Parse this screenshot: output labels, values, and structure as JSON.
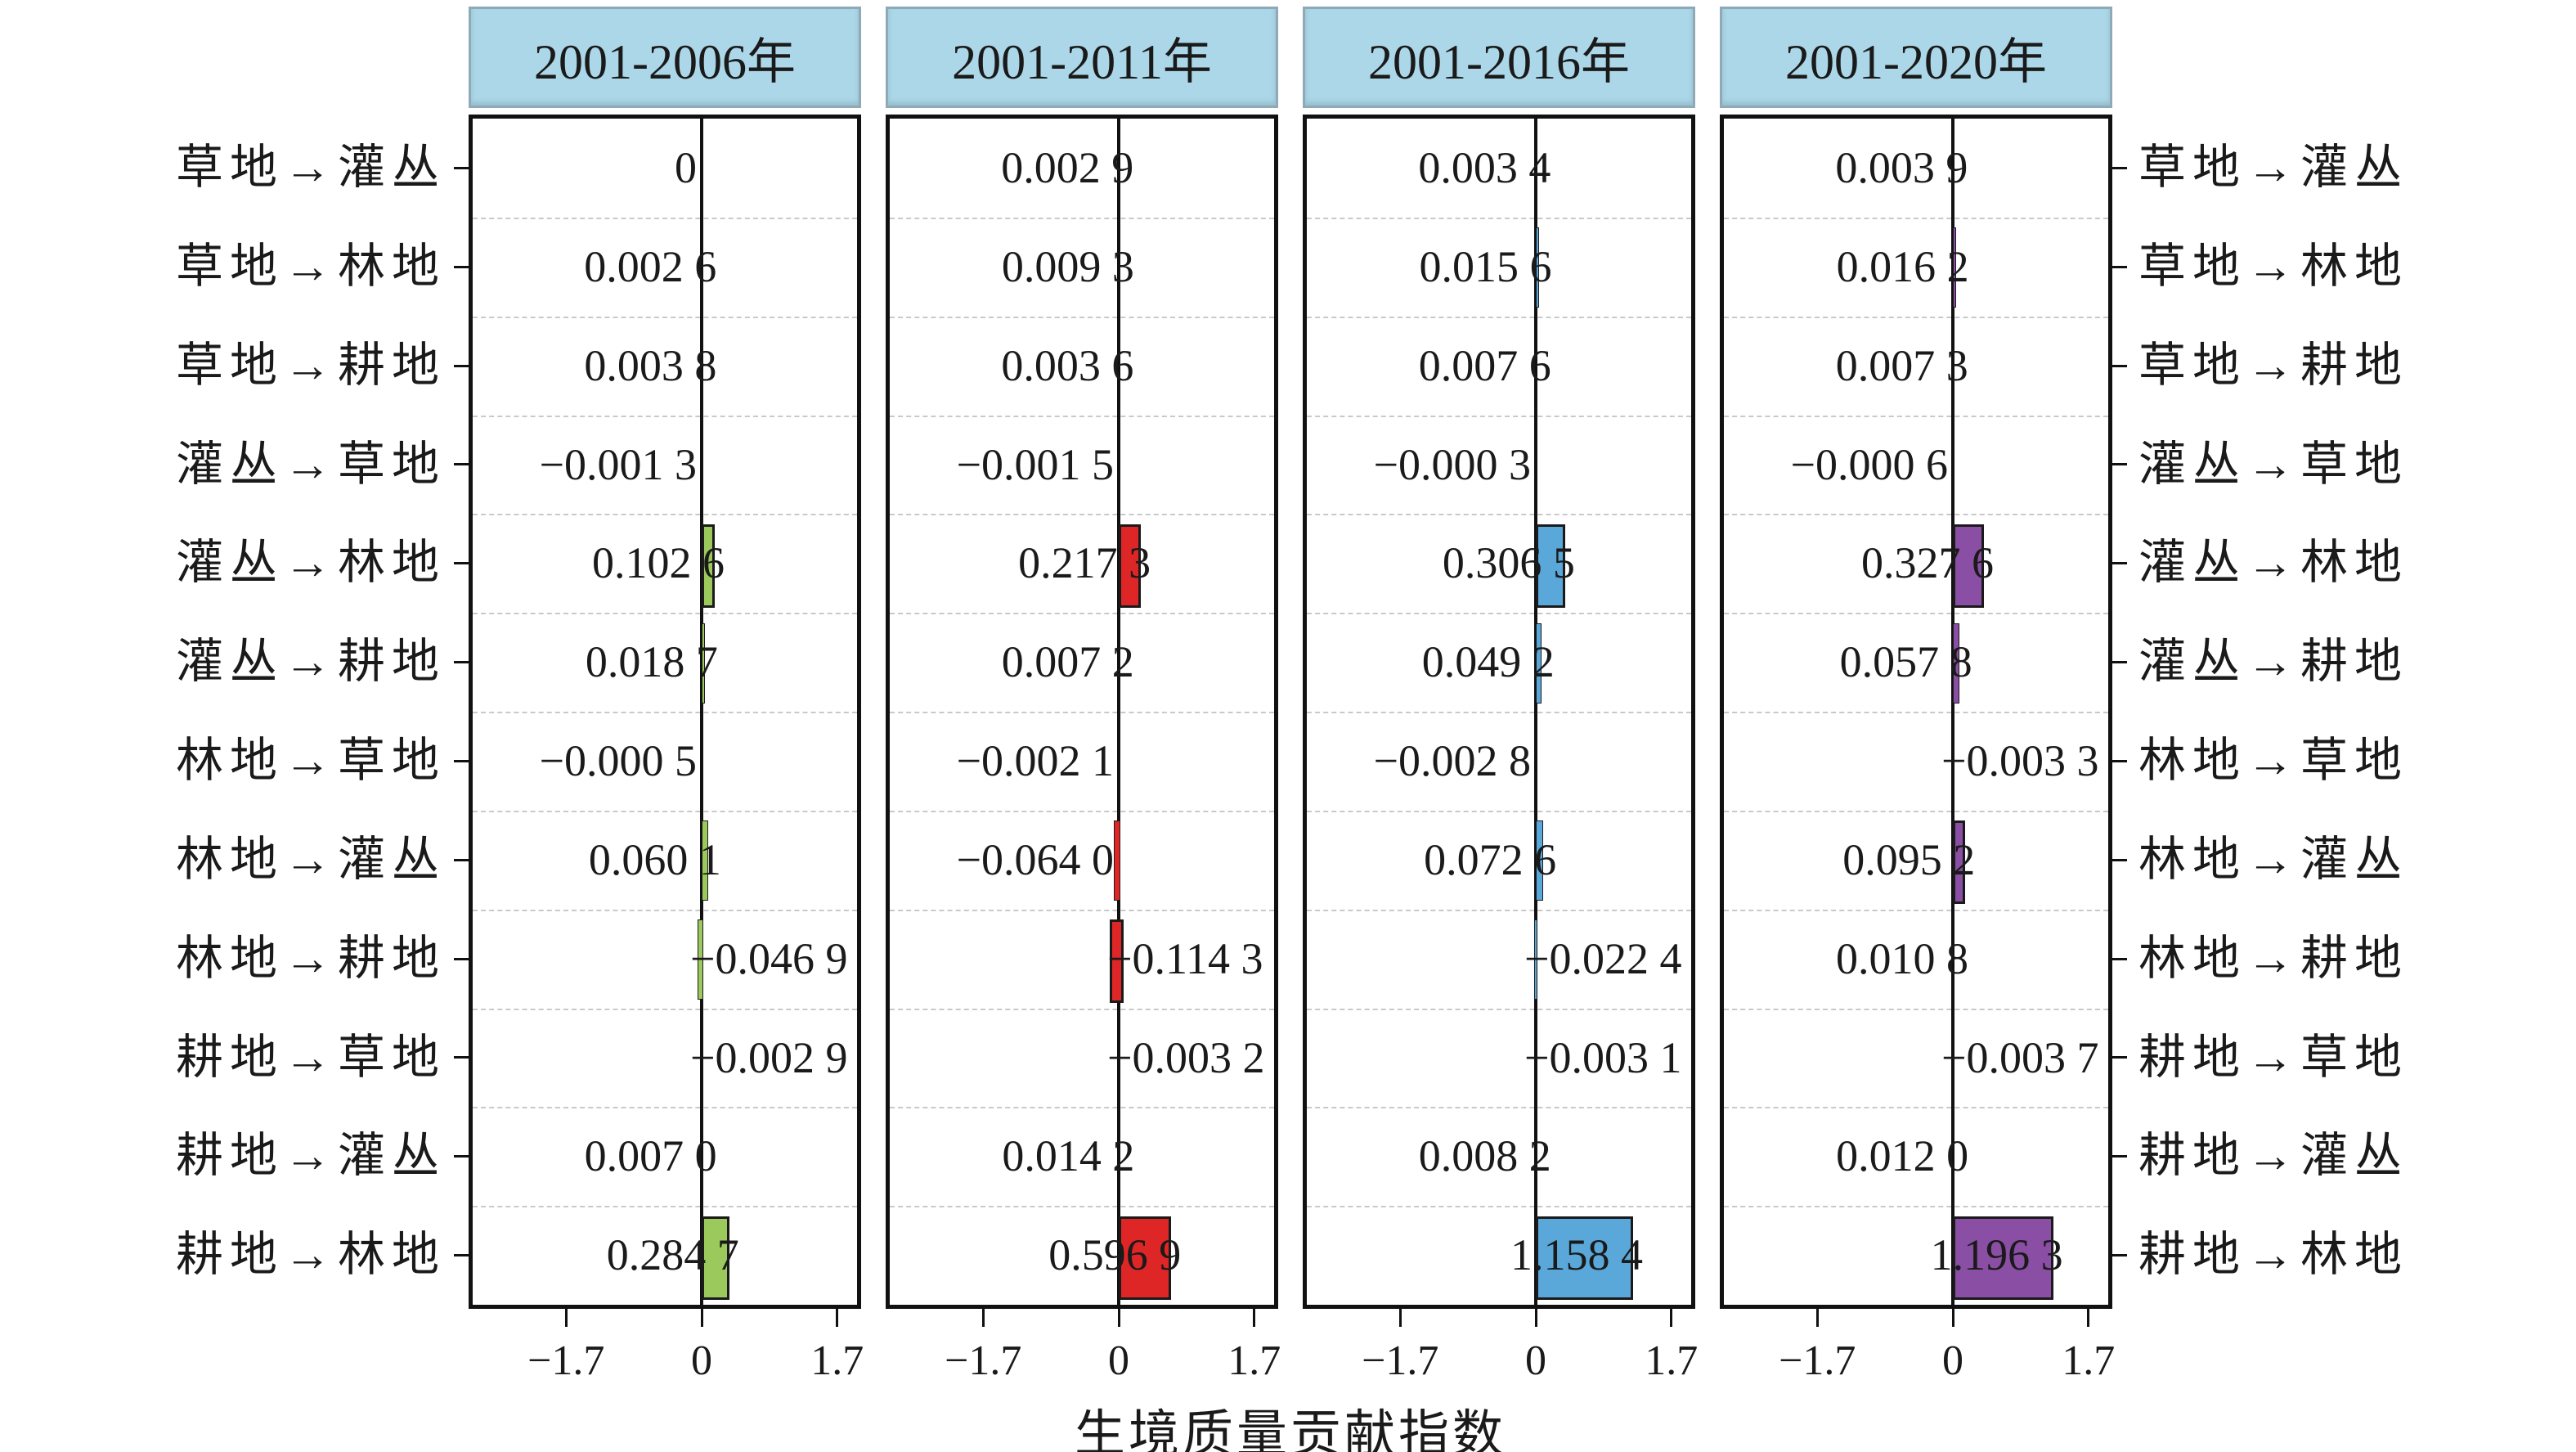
{
  "chart_data": {
    "type": "bar",
    "orientation": "horizontal",
    "title": "",
    "xlabel": "生境质量贡献指数",
    "x_ticks": {
      "labels": [
        "−1.7",
        "0",
        "1.7"
      ],
      "values": [
        -1.7,
        0,
        1.7
      ]
    },
    "xlim": [
      -2.9,
      2.0
    ],
    "grid": "horizontal-dashed",
    "legend_position": "none",
    "facet_header_fill": "#abd7e8",
    "bar_border_color": "#1a1a1a",
    "categories": [
      "草地→灌丛",
      "草地→林地",
      "草地→耕地",
      "灌丛→草地",
      "灌丛→林地",
      "灌丛→耕地",
      "林地→草地",
      "林地→灌丛",
      "林地→耕地",
      "耕地→草地",
      "耕地→灌丛",
      "耕地→林地"
    ],
    "facets": [
      {
        "label": "2001-2006年",
        "color": "#9cc95c",
        "values": [
          0,
          0.0026,
          0.0038,
          -0.0013,
          0.1026,
          0.0187,
          -0.0005,
          0.0601,
          -0.0469,
          -0.0029,
          0.007,
          0.2847
        ],
        "value_labels": [
          "0",
          "0.002 6",
          "0.003 8",
          "−0.001 3",
          "0.102 6",
          "0.018 7",
          "−0.000 5",
          "0.060 1",
          "−0.046 9",
          "−0.002 9",
          "0.007 0",
          "0.284 7"
        ],
        "label_side": [
          "L",
          "L",
          "L",
          "L",
          "L",
          "L",
          "L",
          "L",
          "R",
          "R",
          "L",
          "L"
        ]
      },
      {
        "label": "2001-2011年",
        "color": "#df2627",
        "values": [
          0.0029,
          0.0093,
          0.0036,
          -0.0015,
          0.2173,
          0.0072,
          -0.0021,
          -0.064,
          -0.1143,
          -0.0032,
          0.0142,
          0.5969
        ],
        "value_labels": [
          "0.002 9",
          "0.009 3",
          "0.003 6",
          "−0.001 5",
          "0.217 3",
          "0.007 2",
          "−0.002 1",
          "−0.064 0",
          "−0.114 3",
          "−0.003 2",
          "0.014 2",
          "0.596 9"
        ],
        "label_side": [
          "L",
          "L",
          "L",
          "L",
          "L",
          "L",
          "L",
          "L",
          "R",
          "R",
          "L",
          "L"
        ]
      },
      {
        "label": "2001-2016年",
        "color": "#5aa8d9",
        "values": [
          0.0034,
          0.0156,
          0.0076,
          -0.0003,
          0.3065,
          0.0492,
          -0.0028,
          0.0726,
          -0.0224,
          -0.0031,
          0.0082,
          1.1584
        ],
        "value_labels": [
          "0.003 4",
          "0.015 6",
          "0.007 6",
          "−0.000 3",
          "0.306 5",
          "0.049 2",
          "−0.002 8",
          "0.072 6",
          "−0.022 4",
          "−0.003 1",
          "0.008 2",
          "1.158 4"
        ],
        "label_side": [
          "L",
          "L",
          "L",
          "L",
          "L",
          "L",
          "L",
          "L",
          "R",
          "R",
          "L",
          "L"
        ]
      },
      {
        "label": "2001-2020年",
        "color": "#8a4fa4",
        "values": [
          0.0039,
          0.0162,
          0.0073,
          -0.0006,
          0.3276,
          0.0578,
          -0.0033,
          0.0952,
          0.0108,
          -0.0037,
          0.012,
          1.1963
        ],
        "value_labels": [
          "0.003 9",
          "0.016 2",
          "0.007 3",
          "−0.000 6",
          "0.327 6",
          "0.057 8",
          "−0.003 3",
          "0.095 2",
          "0.010 8",
          "−0.003 7",
          "0.012 0",
          "1.196 3"
        ],
        "label_side": [
          "L",
          "L",
          "L",
          "L",
          "L",
          "L",
          "R",
          "L",
          "L",
          "R",
          "L",
          "L"
        ]
      }
    ]
  }
}
